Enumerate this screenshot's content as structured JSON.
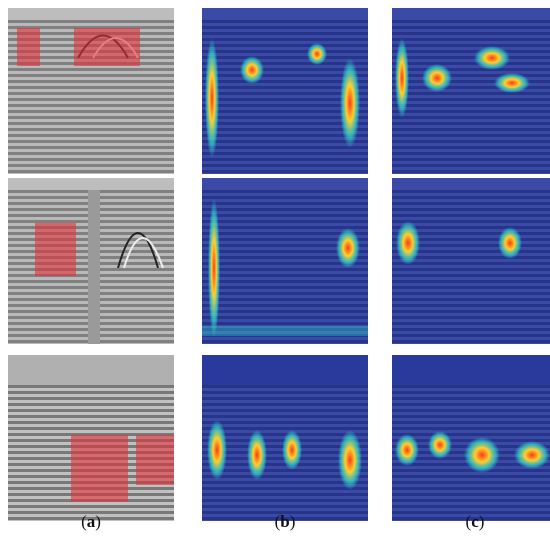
{
  "columns": [
    {
      "id": "a",
      "caption_open": "(",
      "caption_letter": "a",
      "caption_close": ")",
      "kind": "gpr-annotated"
    },
    {
      "id": "b",
      "caption_open": "(",
      "caption_letter": "b",
      "caption_close": ")",
      "kind": "heatmap-wide"
    },
    {
      "id": "c",
      "caption_open": "(",
      "caption_letter": "c",
      "caption_close": ")",
      "kind": "heatmap-focused"
    }
  ],
  "colors": {
    "annotation_box": "#e0323c",
    "heatmap_base": "#1e2f8c",
    "heatmap_hot": "#ff3a1a",
    "heatmap_warm": "#ffd02a",
    "heatmap_mid": "#2fe0d0"
  }
}
